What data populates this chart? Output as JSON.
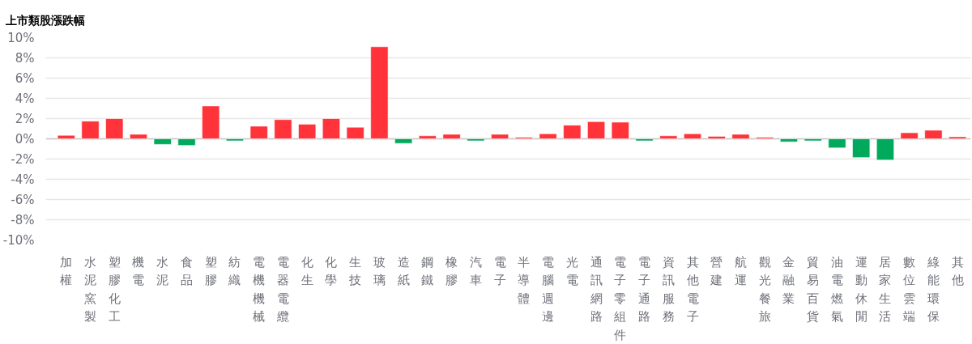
{
  "chart_data": {
    "type": "bar",
    "title": "上市類股漲跌幅",
    "categories": [
      "加權",
      "水泥窯製",
      "塑膠化工",
      "機電",
      "水泥",
      "食品",
      "塑膠",
      "紡織",
      "電機機械",
      "電器電纜",
      "化生",
      "化學",
      "生技",
      "玻璃",
      "造紙",
      "鋼鐵",
      "橡膠",
      "汽車",
      "電子",
      "半導體",
      "電腦週邊",
      "光電",
      "通訊網路",
      "電子零組件",
      "電子通路",
      "資訊服務",
      "其他電子",
      "營建",
      "航運",
      "觀光餐旅",
      "金融業",
      "貿易百貨",
      "油電燃氣",
      "運動休閒",
      "居家生活",
      "數位雲端",
      "綠能環保",
      "其他"
    ],
    "values": [
      0.35,
      1.75,
      2.0,
      0.45,
      -0.55,
      -0.65,
      3.25,
      -0.2,
      1.25,
      1.9,
      1.45,
      2.0,
      1.15,
      9.1,
      -0.45,
      0.3,
      0.45,
      -0.2,
      0.45,
      0.15,
      0.5,
      1.35,
      1.7,
      1.65,
      -0.2,
      0.3,
      0.5,
      0.25,
      0.45,
      0.15,
      -0.3,
      -0.2,
      -0.9,
      -1.85,
      -2.1,
      0.6,
      0.85,
      0.2
    ],
    "colors": [
      "#ff3339",
      "#ff3339",
      "#ff3339",
      "#ff3339",
      "#00a95c",
      "#00a95c",
      "#ff3339",
      "#00a95c",
      "#ff3339",
      "#ff3339",
      "#ff3339",
      "#ff3339",
      "#ff3339",
      "#ff3339",
      "#00a95c",
      "#ff3339",
      "#ff3339",
      "#00a95c",
      "#ff3339",
      "#ff3339",
      "#ff3339",
      "#ff3339",
      "#ff3339",
      "#ff3339",
      "#00a95c",
      "#ff3339",
      "#ff3339",
      "#ff3339",
      "#ff3339",
      "#ff3339",
      "#00a95c",
      "#00a95c",
      "#00a95c",
      "#00a95c",
      "#00a95c",
      "#ff3339",
      "#ff3339",
      "#ff3339"
    ],
    "ylim": [
      -10,
      10
    ],
    "yticks": [
      {
        "value": -10,
        "label": "-10%"
      },
      {
        "value": -8,
        "label": "-8%"
      },
      {
        "value": -6,
        "label": "-6%"
      },
      {
        "value": -4,
        "label": "-4%"
      },
      {
        "value": -2,
        "label": "-2%"
      },
      {
        "value": 0,
        "label": "0%"
      },
      {
        "value": 2,
        "label": "2%"
      },
      {
        "value": 4,
        "label": "4%"
      },
      {
        "value": 6,
        "label": "6%"
      },
      {
        "value": 8,
        "label": "8%"
      },
      {
        "value": 10,
        "label": "10%"
      }
    ],
    "grid": "y"
  }
}
